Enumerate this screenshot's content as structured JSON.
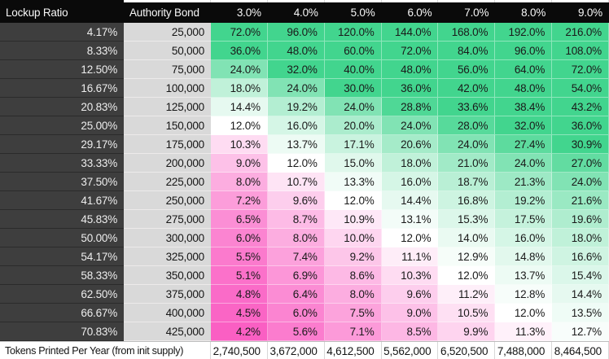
{
  "table": {
    "corner_header": "Lockup Ratio",
    "bond_header": "Authority Bond",
    "rate_headers": [
      "3.0%",
      "4.0%",
      "5.0%",
      "6.0%",
      "7.0%",
      "8.0%",
      "9.0%"
    ],
    "rows": [
      {
        "lockup": "4.17%",
        "bond": "25,000",
        "values": [
          72.0,
          96.0,
          120.0,
          144.0,
          168.0,
          192.0,
          216.0
        ]
      },
      {
        "lockup": "8.33%",
        "bond": "50,000",
        "values": [
          36.0,
          48.0,
          60.0,
          72.0,
          84.0,
          96.0,
          108.0
        ]
      },
      {
        "lockup": "12.50%",
        "bond": "75,000",
        "values": [
          24.0,
          32.0,
          40.0,
          48.0,
          56.0,
          64.0,
          72.0
        ]
      },
      {
        "lockup": "16.67%",
        "bond": "100,000",
        "values": [
          18.0,
          24.0,
          30.0,
          36.0,
          42.0,
          48.0,
          54.0
        ]
      },
      {
        "lockup": "20.83%",
        "bond": "125,000",
        "values": [
          14.4,
          19.2,
          24.0,
          28.8,
          33.6,
          38.4,
          43.2
        ]
      },
      {
        "lockup": "25.00%",
        "bond": "150,000",
        "values": [
          12.0,
          16.0,
          20.0,
          24.0,
          28.0,
          32.0,
          36.0
        ]
      },
      {
        "lockup": "29.17%",
        "bond": "175,000",
        "values": [
          10.3,
          13.7,
          17.1,
          20.6,
          24.0,
          27.4,
          30.9
        ]
      },
      {
        "lockup": "33.33%",
        "bond": "200,000",
        "values": [
          9.0,
          12.0,
          15.0,
          18.0,
          21.0,
          24.0,
          27.0
        ]
      },
      {
        "lockup": "37.50%",
        "bond": "225,000",
        "values": [
          8.0,
          10.7,
          13.3,
          16.0,
          18.7,
          21.3,
          24.0
        ]
      },
      {
        "lockup": "41.67%",
        "bond": "250,000",
        "values": [
          7.2,
          9.6,
          12.0,
          14.4,
          16.8,
          19.2,
          21.6
        ]
      },
      {
        "lockup": "45.83%",
        "bond": "275,000",
        "values": [
          6.5,
          8.7,
          10.9,
          13.1,
          15.3,
          17.5,
          19.6
        ]
      },
      {
        "lockup": "50.00%",
        "bond": "300,000",
        "values": [
          6.0,
          8.0,
          10.0,
          12.0,
          14.0,
          16.0,
          18.0
        ]
      },
      {
        "lockup": "54.17%",
        "bond": "325,000",
        "values": [
          5.5,
          7.4,
          9.2,
          11.1,
          12.9,
          14.8,
          16.6
        ]
      },
      {
        "lockup": "58.33%",
        "bond": "350,000",
        "values": [
          5.1,
          6.9,
          8.6,
          10.3,
          12.0,
          13.7,
          15.4
        ]
      },
      {
        "lockup": "62.50%",
        "bond": "375,000",
        "values": [
          4.8,
          6.4,
          8.0,
          9.6,
          11.2,
          12.8,
          14.4
        ]
      },
      {
        "lockup": "66.67%",
        "bond": "400,000",
        "values": [
          4.5,
          6.0,
          7.5,
          9.0,
          10.5,
          12.0,
          13.5
        ]
      },
      {
        "lockup": "70.83%",
        "bond": "425,000",
        "values": [
          4.2,
          5.6,
          7.1,
          8.5,
          9.9,
          11.3,
          12.7
        ]
      }
    ],
    "footer_label": "Tokens Printed Per Year (from init supply)",
    "footer_values": [
      "2,740,500",
      "3,672,000",
      "4,612,500",
      "5,562,000",
      "6,520,500",
      "7,488,000",
      "8,464,500"
    ],
    "value_suffix": "%",
    "color_scale": {
      "low": "#fa5fc3",
      "mid": "#ffffff",
      "high": "#42d58e",
      "low_value": 4.2,
      "mid_value": 12.0,
      "high_value": 30.0
    },
    "colors": {
      "header_bg": "#0a0a0a",
      "header_text": "#f7f7f7",
      "lockup_col_bg": "#3e3e3e",
      "bond_col_bg": "#d9d9d9"
    }
  }
}
